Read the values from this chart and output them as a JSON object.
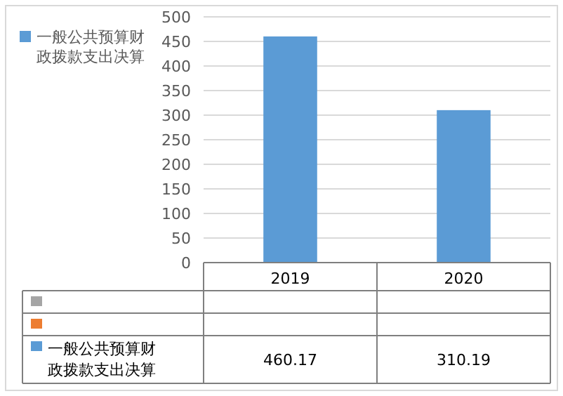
{
  "chart_data": {
    "type": "bar",
    "categories": [
      "2019",
      "2020"
    ],
    "series": [
      {
        "color": "#a5a5a5",
        "values": [
          null,
          null
        ]
      },
      {
        "color": "#ed7d31",
        "values": [
          null,
          null
        ]
      },
      {
        "name": "一般公共预算财政拨款支出决算",
        "color": "#5b9bd5",
        "values": [
          460.17,
          310.19
        ]
      }
    ],
    "ylim": [
      0,
      500
    ],
    "yticks": [
      0,
      50,
      100,
      150,
      200,
      250,
      300,
      350,
      400,
      450,
      500
    ],
    "grid": "y",
    "legend": "left",
    "data_labels": true
  }
}
